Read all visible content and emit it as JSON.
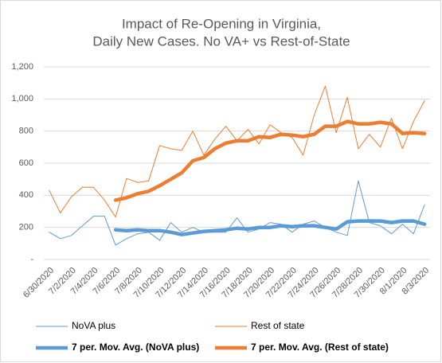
{
  "chart_data": {
    "type": "line",
    "title": [
      "Impact of Re-Opening in Virginia,",
      "Daily New Cases. No VA+ vs Rest-of-State"
    ],
    "categories": [
      "6/30/2020",
      null,
      "7/2/2020",
      null,
      "7/4/2020",
      null,
      "7/6/2020",
      null,
      "7/8/2020",
      null,
      "7/10/2020",
      null,
      "7/12/2020",
      null,
      "7/14/2020",
      null,
      "7/16/2020",
      null,
      "7/18/2020",
      null,
      "7/20/2020",
      null,
      "7/22/2020",
      null,
      "7/24/2020",
      null,
      "7/26/2020",
      null,
      "7/28/2020",
      null,
      "7/30/2020",
      null,
      "8/1/2020",
      null,
      "8/3/2020"
    ],
    "series": [
      {
        "name": "NoVA plus",
        "color": "#5b9bd5",
        "width": 1,
        "values": [
          170,
          130,
          150,
          210,
          270,
          270,
          90,
          130,
          160,
          170,
          120,
          230,
          170,
          200,
          170,
          170,
          170,
          260,
          170,
          190,
          230,
          220,
          170,
          220,
          240,
          200,
          170,
          150,
          490,
          230,
          210,
          160,
          220,
          160,
          340
        ]
      },
      {
        "name": "Rest of state",
        "color": "#ed7d31",
        "width": 1,
        "values": [
          430,
          290,
          390,
          450,
          450,
          370,
          265,
          505,
          480,
          490,
          710,
          690,
          680,
          800,
          650,
          750,
          830,
          740,
          810,
          720,
          840,
          790,
          760,
          650,
          900,
          1080,
          790,
          1010,
          690,
          780,
          700,
          880,
          690,
          860,
          990
        ]
      },
      {
        "name": "7 per. Mov. Avg. (NoVA plus)",
        "color": "#5b9bd5",
        "width": 4.5,
        "values": [
          null,
          null,
          null,
          null,
          null,
          null,
          185,
          180,
          185,
          180,
          180,
          170,
          155,
          165,
          175,
          180,
          185,
          195,
          190,
          200,
          200,
          210,
          205,
          210,
          210,
          200,
          190,
          235,
          240,
          240,
          240,
          230,
          240,
          240,
          220
        ]
      },
      {
        "name": "7 per. Mov. Avg. (Rest of state)",
        "color": "#ed7d31",
        "width": 4.5,
        "values": [
          null,
          null,
          null,
          null,
          null,
          null,
          370,
          385,
          410,
          425,
          460,
          500,
          540,
          615,
          635,
          690,
          725,
          740,
          740,
          765,
          760,
          780,
          775,
          765,
          780,
          830,
          830,
          860,
          845,
          845,
          855,
          845,
          785,
          790,
          785
        ]
      }
    ],
    "ylim": [
      0,
      1200
    ],
    "yticks": [
      {
        "value": 0,
        "label": "-"
      },
      200,
      400,
      600,
      800,
      {
        "value": 1000,
        "label": "1,000"
      },
      {
        "value": 1200,
        "label": "1,200"
      }
    ],
    "grid": true
  }
}
